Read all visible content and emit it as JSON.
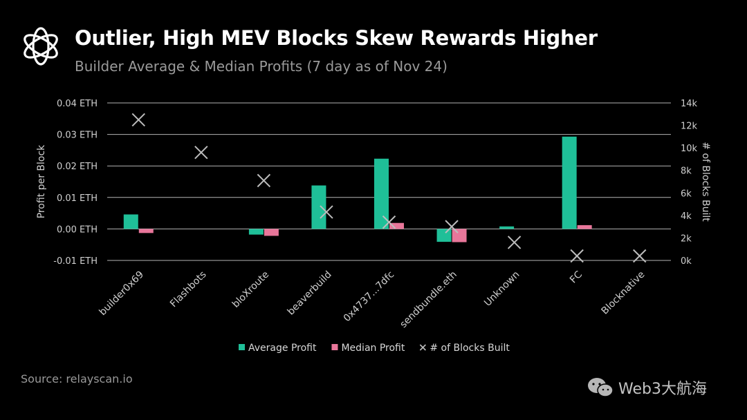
{
  "header": {
    "title": "Outlier, High MEV Blocks Skew Rewards Higher",
    "subtitle": "Builder Average & Median Profits (7 day as of Nov 24)"
  },
  "footer": {
    "source": "Source: relayscan.io",
    "watermark": "Web3大航海"
  },
  "colors": {
    "background": "#000000",
    "average": "#1fbf98",
    "median": "#e8769a",
    "marker": "#bdbdbd",
    "grid": "#b5b5b5"
  },
  "chart_data": {
    "type": "bar",
    "categories": [
      "builder0x69",
      "Flashbots",
      "bloXroute",
      "beaverbuild",
      "0x4737...7dfc",
      "sendbundle.eth",
      "Unknown",
      "FC",
      "Blocknative"
    ],
    "series": [
      {
        "name": "Average Profit",
        "axis": "left",
        "marker": "bar",
        "color": "#1fbf98",
        "values": [
          0.0046,
          0,
          -0.0018,
          0.0138,
          0.0223,
          -0.0041,
          0.0008,
          0.0293,
          0
        ]
      },
      {
        "name": "Median Profit",
        "axis": "left",
        "marker": "bar",
        "color": "#e8769a",
        "values": [
          -0.0013,
          0,
          -0.0022,
          0,
          0.0019,
          -0.0042,
          0,
          0.0012,
          0
        ]
      },
      {
        "name": "# of Blocks Built",
        "axis": "right",
        "marker": "x",
        "color": "#bdbdbd",
        "values": [
          12500,
          9600,
          7100,
          4300,
          3400,
          3000,
          1600,
          400,
          400
        ]
      }
    ],
    "y_left": {
      "label": "Profit per Block",
      "ticks": [
        "0.04 ETH",
        "0.03 ETH",
        "0.02 ETH",
        "0.01 ETH",
        "0.00 ETH",
        "-0.01 ETH"
      ],
      "tick_values": [
        0.04,
        0.03,
        0.02,
        0.01,
        0,
        -0.01
      ],
      "lim": [
        -0.01,
        0.04
      ]
    },
    "y_right": {
      "label": "# of Blocks Built",
      "ticks": [
        "14k",
        "12k",
        "10k",
        "8k",
        "6k",
        "4k",
        "2k",
        "0k"
      ],
      "tick_values": [
        14000,
        12000,
        10000,
        8000,
        6000,
        4000,
        2000,
        0
      ],
      "lim": [
        0,
        14000
      ]
    },
    "grid": true,
    "legend_position": "bottom"
  }
}
